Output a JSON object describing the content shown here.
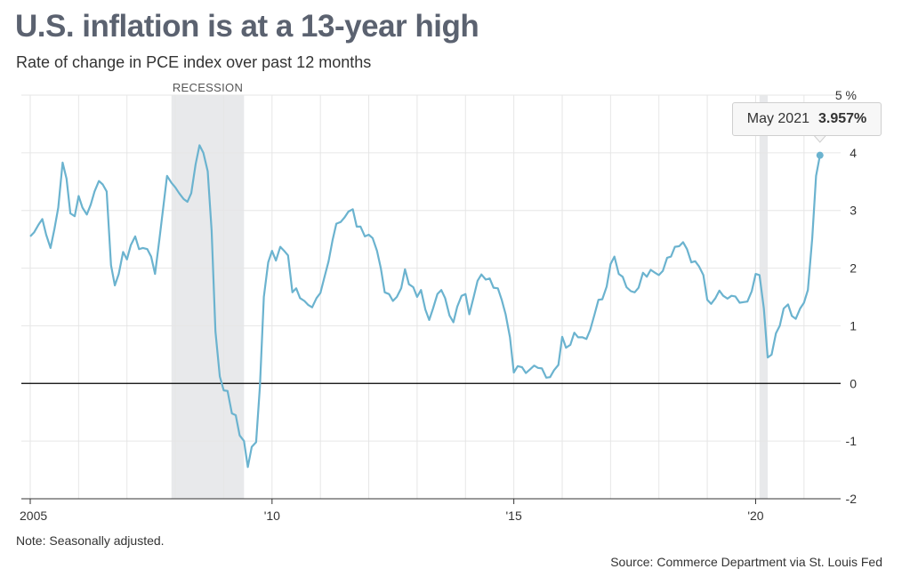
{
  "title": "U.S. inflation is at a 13-year high",
  "subtitle": "Rate of change in PCE index over past 12 months",
  "note": "Note: Seasonally adjusted.",
  "source": "Source: Commerce Department via St. Louis Fed",
  "tooltip": {
    "label": "May 2021",
    "value": "3.957%"
  },
  "colors": {
    "line": "#6bb3cf",
    "recession": "#e8e9eb",
    "zero_line": "#000000",
    "grid": "#e6e6e6"
  },
  "chart_data": {
    "type": "line",
    "title": "U.S. inflation is at a 13-year high",
    "subtitle": "Rate of change in PCE index over past 12 months",
    "xlabel": "",
    "ylabel": "",
    "x_ticks": [
      {
        "value": 2005,
        "label": "2005"
      },
      {
        "value": 2010,
        "label": "'10"
      },
      {
        "value": 2015,
        "label": "'15"
      },
      {
        "value": 2020,
        "label": "'20"
      }
    ],
    "y_ticks": [
      {
        "value": 5,
        "label": "5 %"
      },
      {
        "value": 4,
        "label": "4"
      },
      {
        "value": 3,
        "label": "3"
      },
      {
        "value": 2,
        "label": "2"
      },
      {
        "value": 1,
        "label": "1"
      },
      {
        "value": 0,
        "label": "0"
      },
      {
        "value": -1,
        "label": "-1"
      },
      {
        "value": -2,
        "label": "-2"
      }
    ],
    "xlim": [
      2005,
      2021.5
    ],
    "ylim": [
      -2,
      5
    ],
    "grid": true,
    "recessions": [
      {
        "start": 2007.92,
        "end": 2009.42,
        "label": "RECESSION"
      },
      {
        "start": 2020.08,
        "end": 2020.25,
        "label": ""
      }
    ],
    "highlight": {
      "x": 2021.33,
      "y": 3.957,
      "label": "May 2021",
      "value_label": "3.957%"
    },
    "series": [
      {
        "values": [
          [
            2005.0,
            2.55
          ],
          [
            2005.08,
            2.62
          ],
          [
            2005.17,
            2.75
          ],
          [
            2005.25,
            2.85
          ],
          [
            2005.33,
            2.58
          ],
          [
            2005.42,
            2.35
          ],
          [
            2005.5,
            2.68
          ],
          [
            2005.58,
            3.05
          ],
          [
            2005.67,
            3.83
          ],
          [
            2005.75,
            3.55
          ],
          [
            2005.83,
            2.95
          ],
          [
            2005.92,
            2.9
          ],
          [
            2006.0,
            3.25
          ],
          [
            2006.08,
            3.05
          ],
          [
            2006.17,
            2.93
          ],
          [
            2006.25,
            3.1
          ],
          [
            2006.33,
            3.33
          ],
          [
            2006.42,
            3.51
          ],
          [
            2006.5,
            3.45
          ],
          [
            2006.58,
            3.33
          ],
          [
            2006.67,
            2.05
          ],
          [
            2006.75,
            1.7
          ],
          [
            2006.83,
            1.9
          ],
          [
            2006.92,
            2.28
          ],
          [
            2007.0,
            2.15
          ],
          [
            2007.08,
            2.4
          ],
          [
            2007.17,
            2.55
          ],
          [
            2007.25,
            2.33
          ],
          [
            2007.33,
            2.35
          ],
          [
            2007.42,
            2.33
          ],
          [
            2007.5,
            2.2
          ],
          [
            2007.58,
            1.9
          ],
          [
            2007.67,
            2.5
          ],
          [
            2007.75,
            3.05
          ],
          [
            2007.83,
            3.6
          ],
          [
            2007.92,
            3.48
          ],
          [
            2008.0,
            3.4
          ],
          [
            2008.08,
            3.3
          ],
          [
            2008.17,
            3.2
          ],
          [
            2008.25,
            3.15
          ],
          [
            2008.33,
            3.3
          ],
          [
            2008.42,
            3.8
          ],
          [
            2008.5,
            4.13
          ],
          [
            2008.58,
            4.0
          ],
          [
            2008.67,
            3.68
          ],
          [
            2008.75,
            2.65
          ],
          [
            2008.83,
            0.9
          ],
          [
            2008.92,
            0.12
          ],
          [
            2009.0,
            -0.12
          ],
          [
            2009.08,
            -0.13
          ],
          [
            2009.17,
            -0.52
          ],
          [
            2009.25,
            -0.55
          ],
          [
            2009.33,
            -0.9
          ],
          [
            2009.42,
            -1.0
          ],
          [
            2009.5,
            -1.45
          ],
          [
            2009.58,
            -1.1
          ],
          [
            2009.67,
            -1.02
          ],
          [
            2009.75,
            -0.05
          ],
          [
            2009.83,
            1.5
          ],
          [
            2009.92,
            2.1
          ],
          [
            2010.0,
            2.3
          ],
          [
            2010.08,
            2.13
          ],
          [
            2010.17,
            2.37
          ],
          [
            2010.25,
            2.3
          ],
          [
            2010.33,
            2.22
          ],
          [
            2010.42,
            1.58
          ],
          [
            2010.5,
            1.65
          ],
          [
            2010.58,
            1.48
          ],
          [
            2010.67,
            1.43
          ],
          [
            2010.75,
            1.36
          ],
          [
            2010.83,
            1.32
          ],
          [
            2010.92,
            1.48
          ],
          [
            2011.0,
            1.57
          ],
          [
            2011.08,
            1.83
          ],
          [
            2011.17,
            2.12
          ],
          [
            2011.25,
            2.48
          ],
          [
            2011.33,
            2.77
          ],
          [
            2011.42,
            2.8
          ],
          [
            2011.5,
            2.88
          ],
          [
            2011.58,
            2.98
          ],
          [
            2011.67,
            3.02
          ],
          [
            2011.75,
            2.72
          ],
          [
            2011.83,
            2.72
          ],
          [
            2011.92,
            2.55
          ],
          [
            2012.0,
            2.58
          ],
          [
            2012.08,
            2.52
          ],
          [
            2012.17,
            2.3
          ],
          [
            2012.25,
            2.0
          ],
          [
            2012.33,
            1.58
          ],
          [
            2012.42,
            1.55
          ],
          [
            2012.5,
            1.43
          ],
          [
            2012.58,
            1.5
          ],
          [
            2012.67,
            1.65
          ],
          [
            2012.75,
            1.98
          ],
          [
            2012.83,
            1.72
          ],
          [
            2012.92,
            1.67
          ],
          [
            2013.0,
            1.5
          ],
          [
            2013.08,
            1.62
          ],
          [
            2013.17,
            1.28
          ],
          [
            2013.25,
            1.1
          ],
          [
            2013.33,
            1.3
          ],
          [
            2013.42,
            1.55
          ],
          [
            2013.5,
            1.62
          ],
          [
            2013.58,
            1.48
          ],
          [
            2013.67,
            1.18
          ],
          [
            2013.75,
            1.06
          ],
          [
            2013.83,
            1.33
          ],
          [
            2013.92,
            1.52
          ],
          [
            2014.0,
            1.55
          ],
          [
            2014.08,
            1.2
          ],
          [
            2014.17,
            1.5
          ],
          [
            2014.25,
            1.78
          ],
          [
            2014.33,
            1.89
          ],
          [
            2014.42,
            1.8
          ],
          [
            2014.5,
            1.82
          ],
          [
            2014.58,
            1.66
          ],
          [
            2014.67,
            1.65
          ],
          [
            2014.75,
            1.45
          ],
          [
            2014.83,
            1.2
          ],
          [
            2014.92,
            0.8
          ],
          [
            2015.0,
            0.19
          ],
          [
            2015.08,
            0.3
          ],
          [
            2015.17,
            0.28
          ],
          [
            2015.25,
            0.18
          ],
          [
            2015.33,
            0.24
          ],
          [
            2015.42,
            0.31
          ],
          [
            2015.5,
            0.27
          ],
          [
            2015.58,
            0.26
          ],
          [
            2015.67,
            0.1
          ],
          [
            2015.75,
            0.11
          ],
          [
            2015.83,
            0.23
          ],
          [
            2015.92,
            0.32
          ],
          [
            2016.0,
            0.81
          ],
          [
            2016.08,
            0.62
          ],
          [
            2016.17,
            0.67
          ],
          [
            2016.25,
            0.88
          ],
          [
            2016.33,
            0.8
          ],
          [
            2016.42,
            0.8
          ],
          [
            2016.5,
            0.77
          ],
          [
            2016.58,
            0.93
          ],
          [
            2016.67,
            1.2
          ],
          [
            2016.75,
            1.45
          ],
          [
            2016.83,
            1.46
          ],
          [
            2016.92,
            1.68
          ],
          [
            2017.0,
            2.07
          ],
          [
            2017.08,
            2.2
          ],
          [
            2017.17,
            1.9
          ],
          [
            2017.25,
            1.85
          ],
          [
            2017.33,
            1.67
          ],
          [
            2017.42,
            1.6
          ],
          [
            2017.5,
            1.58
          ],
          [
            2017.58,
            1.66
          ],
          [
            2017.67,
            1.92
          ],
          [
            2017.75,
            1.85
          ],
          [
            2017.83,
            1.97
          ],
          [
            2017.92,
            1.92
          ],
          [
            2018.0,
            1.88
          ],
          [
            2018.08,
            1.95
          ],
          [
            2018.17,
            2.18
          ],
          [
            2018.25,
            2.2
          ],
          [
            2018.33,
            2.37
          ],
          [
            2018.42,
            2.38
          ],
          [
            2018.5,
            2.45
          ],
          [
            2018.58,
            2.33
          ],
          [
            2018.67,
            2.1
          ],
          [
            2018.75,
            2.12
          ],
          [
            2018.83,
            2.03
          ],
          [
            2018.92,
            1.88
          ],
          [
            2019.0,
            1.45
          ],
          [
            2019.08,
            1.38
          ],
          [
            2019.17,
            1.48
          ],
          [
            2019.25,
            1.61
          ],
          [
            2019.33,
            1.52
          ],
          [
            2019.42,
            1.47
          ],
          [
            2019.5,
            1.52
          ],
          [
            2019.58,
            1.51
          ],
          [
            2019.67,
            1.4
          ],
          [
            2019.75,
            1.41
          ],
          [
            2019.83,
            1.42
          ],
          [
            2019.92,
            1.6
          ],
          [
            2020.0,
            1.9
          ],
          [
            2020.08,
            1.88
          ],
          [
            2020.17,
            1.3
          ],
          [
            2020.25,
            0.45
          ],
          [
            2020.33,
            0.5
          ],
          [
            2020.42,
            0.87
          ],
          [
            2020.5,
            1.0
          ],
          [
            2020.58,
            1.3
          ],
          [
            2020.67,
            1.37
          ],
          [
            2020.75,
            1.17
          ],
          [
            2020.83,
            1.12
          ],
          [
            2020.92,
            1.3
          ],
          [
            2021.0,
            1.4
          ],
          [
            2021.08,
            1.62
          ],
          [
            2021.17,
            2.52
          ],
          [
            2021.25,
            3.6
          ],
          [
            2021.33,
            3.957
          ]
        ]
      }
    ]
  }
}
